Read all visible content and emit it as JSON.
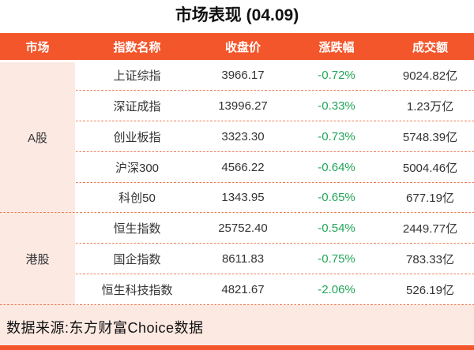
{
  "chart_data": {
    "type": "table",
    "title": "市场表现 (04.09)",
    "columns": [
      "市场",
      "指数名称",
      "收盘价",
      "涨跌幅",
      "成交额"
    ],
    "groups": [
      {
        "market": "A股",
        "rows": [
          {
            "name": "上证综指",
            "close": "3966.17",
            "change": "-0.72%",
            "turnover": "9024.82亿"
          },
          {
            "name": "深证成指",
            "close": "13996.27",
            "change": "-0.33%",
            "turnover": "1.23万亿"
          },
          {
            "name": "创业板指",
            "close": "3323.30",
            "change": "-0.73%",
            "turnover": "5748.39亿"
          },
          {
            "name": "沪深300",
            "close": "4566.22",
            "change": "-0.64%",
            "turnover": "5004.46亿"
          },
          {
            "name": "科创50",
            "close": "1343.95",
            "change": "-0.65%",
            "turnover": "677.19亿"
          }
        ]
      },
      {
        "market": "港股",
        "rows": [
          {
            "name": "恒生指数",
            "close": "25752.40",
            "change": "-0.54%",
            "turnover": "2449.77亿"
          },
          {
            "name": "国企指数",
            "close": "8611.83",
            "change": "-0.75%",
            "turnover": "783.33亿"
          },
          {
            "name": "恒生科技指数",
            "close": "4821.67",
            "change": "-2.06%",
            "turnover": "526.19亿"
          }
        ]
      }
    ]
  },
  "footer": {
    "source": "数据来源:东方财富Choice数据"
  },
  "colors": {
    "accent": "#f4562b",
    "panel_pink": "#fce9e2",
    "dashed_line": "#ef7a52",
    "down_green": "#21a558",
    "text": "#333333",
    "header_text": "#ffffff",
    "title_text": "#111111",
    "footer_text": "#111111"
  }
}
